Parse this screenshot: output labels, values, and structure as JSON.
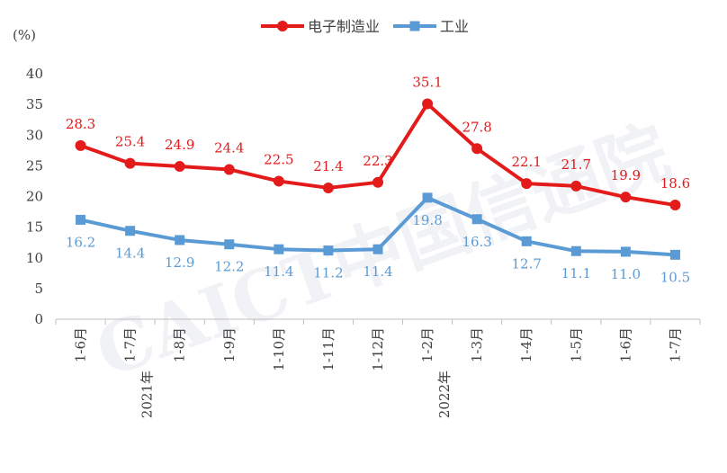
{
  "chart_data": {
    "type": "line",
    "unit_label": "(%)",
    "categories": [
      "1-6月",
      "1-7月",
      "1-8月",
      "1-9月",
      "1-10月",
      "1-11月",
      "1-12月",
      "1-2月",
      "1-3月",
      "1-4月",
      "1-5月",
      "1-6月",
      "1-7月"
    ],
    "year_labels": [
      {
        "text": "2021年",
        "category_index": 1
      },
      {
        "text": "2022年",
        "category_index": 7
      }
    ],
    "series": [
      {
        "name": "电子制造业",
        "color": "#e31b1b",
        "marker": "circle",
        "values": [
          28.3,
          25.4,
          24.9,
          24.4,
          22.5,
          21.4,
          22.3,
          35.1,
          27.8,
          22.1,
          21.7,
          19.9,
          18.6
        ]
      },
      {
        "name": "工业",
        "color": "#5b9bd5",
        "marker": "square",
        "values": [
          16.2,
          14.4,
          12.9,
          12.2,
          11.4,
          11.2,
          11.4,
          19.8,
          16.3,
          12.7,
          11.1,
          11.0,
          10.5
        ]
      }
    ],
    "ylim": [
      0,
      40
    ],
    "yticks": [
      0,
      5,
      10,
      15,
      20,
      25,
      30,
      35,
      40
    ],
    "grid": false,
    "legend_position": "top-center",
    "watermark": "CAICT中国信通院"
  }
}
